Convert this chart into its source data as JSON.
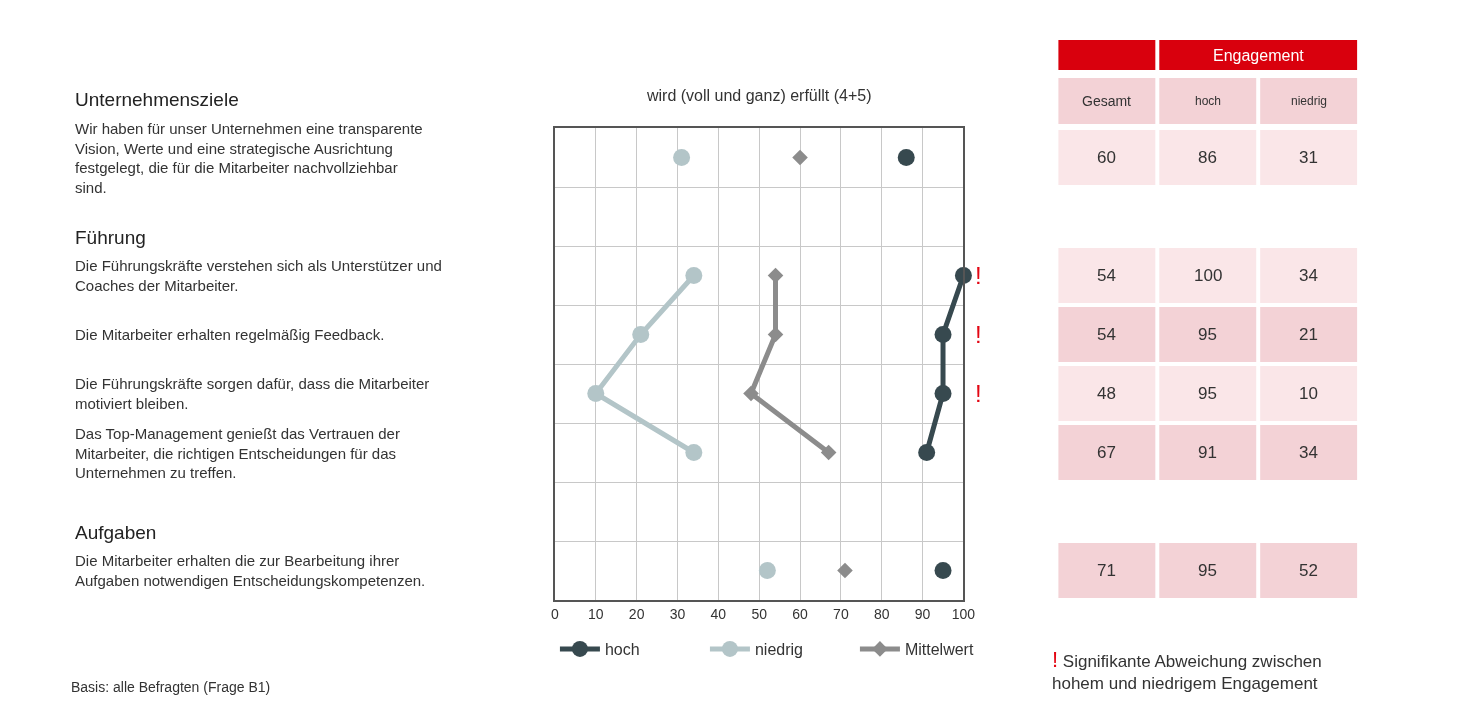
{
  "chart_data": [
    {
      "type": "line",
      "orientation": "horizontal",
      "title": "wird (voll und ganz) erfüllt (4+5)",
      "categories": [
        "Wir haben für unser Unternehmen eine transparente Vision, Werte und eine strategische Ausrichtung festgelegt, die für die Mitarbeiter nachvollziehbar sind.",
        null,
        "Die Führungskräfte verstehen sich als Unterstützer und Coaches der Mitarbeiter.",
        "Die Mitarbeiter erhalten regelmäßig Feedback.",
        "Die Führungskräfte sorgen dafür, dass die Mitarbeiter motiviert bleiben.",
        "Das Top-Management genießt das Vertrauen der Mitarbeiter, die richtigen Entscheidungen für das Unternehmen zu treffen.",
        null,
        "Die Mitarbeiter erhalten die zur Bearbeitung ihrer Aufgaben notwendigen Entscheidungskompetenzen."
      ],
      "series": [
        {
          "name": "hoch",
          "color": "#37494f",
          "marker": "circle",
          "values": [
            86,
            null,
            100,
            95,
            95,
            91,
            null,
            95
          ]
        },
        {
          "name": "niedrig",
          "color": "#b3c5c8",
          "marker": "circle",
          "values": [
            31,
            null,
            34,
            21,
            10,
            34,
            null,
            52
          ]
        },
        {
          "name": "Mittelwert",
          "color": "#8c8c8c",
          "marker": "diamond",
          "values": [
            60,
            null,
            54,
            54,
            48,
            67,
            null,
            71
          ]
        }
      ],
      "xlim": [
        0,
        100
      ],
      "xticks": [
        0,
        10,
        20,
        30,
        40,
        50,
        60,
        70,
        80,
        90,
        100
      ],
      "grid": true,
      "legend": "bottom left",
      "annotations": [
        "Unternehmensziele",
        "Führung",
        "Aufgaben",
        "!",
        "!",
        "!",
        "Signifikante Abweichung zwischen hohem und niedrigem Engagement",
        "Basis: alle Befragten (Frage B1)"
      ]
    },
    {
      "type": "other",
      "annotations": [
        "Engagement",
        "Gesamt",
        "hoch",
        "niedrig",
        "60",
        "86",
        "31",
        "54",
        "100",
        "34",
        "54",
        "95",
        "21",
        "48",
        "95",
        "10",
        "67",
        "91",
        "34",
        "71",
        "95",
        "52"
      ]
    }
  ]
}
